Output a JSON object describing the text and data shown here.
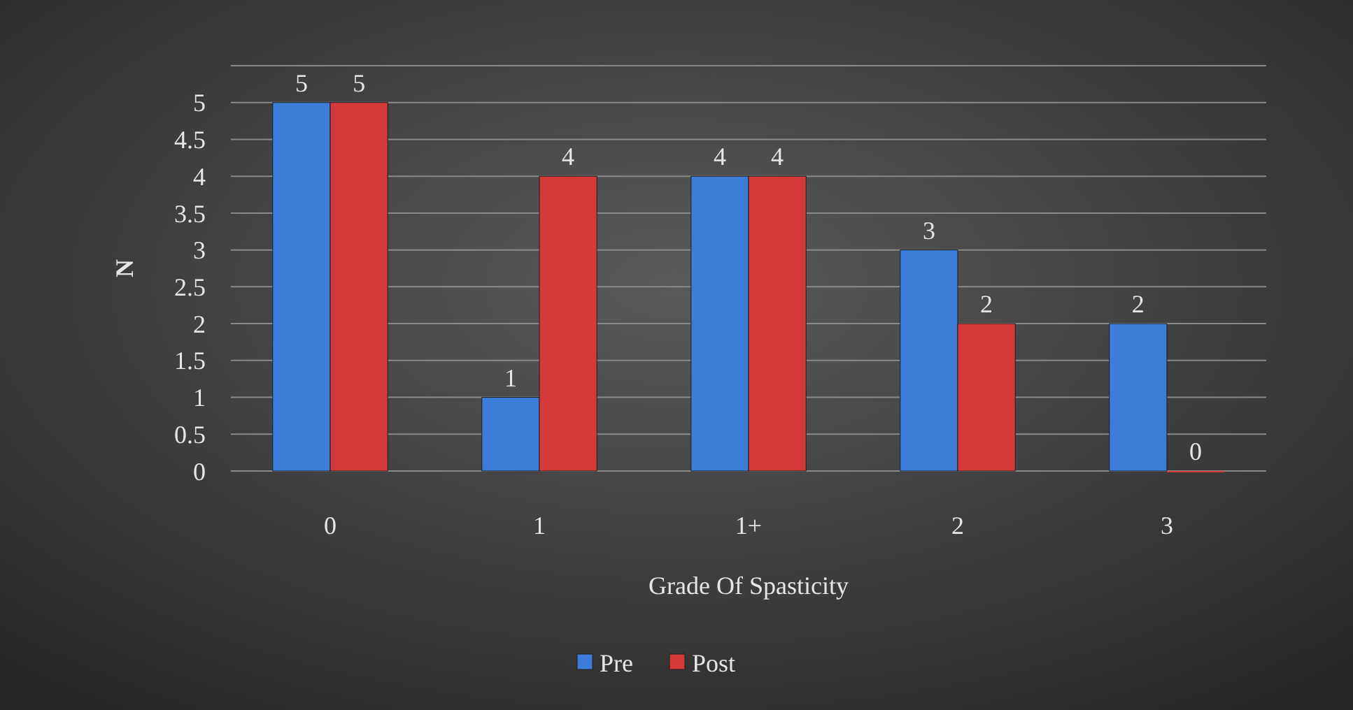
{
  "chart_data": {
    "type": "bar",
    "xlabel": "Grade Of Spasticity",
    "ylabel": "N",
    "categories": [
      "0",
      "1",
      "1+",
      "2",
      "3"
    ],
    "series": [
      {
        "name": "Pre",
        "color": "#3b7dd8",
        "values": [
          5,
          1,
          4,
          3,
          2
        ]
      },
      {
        "name": "Post",
        "color": "#d43a3a",
        "values": [
          5,
          4,
          4,
          2,
          0
        ]
      }
    ],
    "ylim": [
      0,
      5.5
    ],
    "yticks": [
      0,
      0.5,
      1,
      1.5,
      2,
      2.5,
      3,
      3.5,
      4,
      4.5,
      5
    ],
    "grid": "y",
    "legend": "bottom",
    "data_labels": true
  }
}
